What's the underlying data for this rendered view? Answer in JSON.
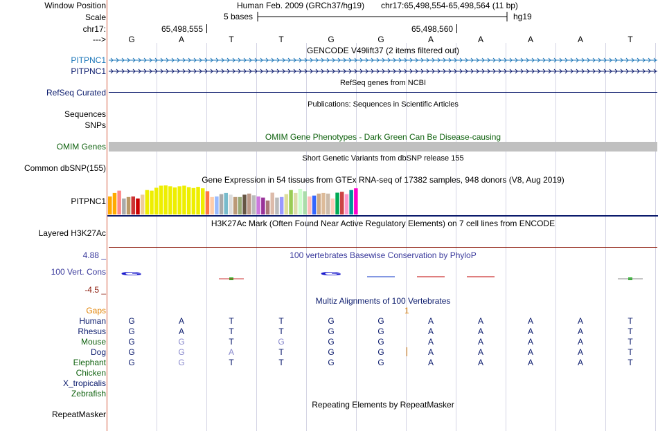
{
  "header": {
    "window_position_label": "Window Position",
    "scale_label": "Scale",
    "chrom_label": "chr17:",
    "arrow_label": "--->",
    "assembly_text": "Human Feb. 2009 (GRCh37/hg19)",
    "position_text": "chr17:65,498,554-65,498,564 (11 bp)",
    "scale_text": "5 bases",
    "assembly_short": "hg19",
    "coord_left": "65,498,555",
    "coord_right": "65,498,560"
  },
  "sequence": [
    "G",
    "A",
    "T",
    "T",
    "G",
    "G",
    "A",
    "A",
    "A",
    "A",
    "T"
  ],
  "tracks": {
    "gencode_title": "GENCODE V49lift37 (2 items filtered out)",
    "gencode_items": [
      "PITPNC1",
      "PITPNC1"
    ],
    "refseq_title": "RefSeq genes from NCBI",
    "refseq_label": "RefSeq Curated",
    "pubs_title": "Publications: Sequences in Scientific Articles",
    "sequences_label": "Sequences",
    "snps_label": "SNPs",
    "omim_title": "OMIM Gene Phenotypes - Dark Green Can Be Disease-causing",
    "omim_label": "OMIM Genes",
    "dbsnp_title": "Short Genetic Variants from dbSNP release 155",
    "dbsnp_label": "Common dbSNP(155)",
    "gtex_title": "Gene Expression in 54 tissues from GTEx RNA-seq of 17382 samples, 948 donors (V8, Aug 2019)",
    "gtex_label": "PITPNC1",
    "h3k27_title": "H3K27Ac Mark (Often Found Near Active Regulatory Elements) on 7 cell lines from ENCODE",
    "h3k27_label": "Layered H3K27Ac",
    "cons_title": "100 vertebrates Basewise Conservation by PhyloP",
    "cons_label": "100 Vert. Cons",
    "cons_max": "4.88 _",
    "cons_min": "-4.5 _",
    "multiz_title": "Multiz Alignments of 100 Vertebrates",
    "gaps_label": "Gaps",
    "gaps_value": "1",
    "rmsk_title": "Repeating Elements by RepeatMasker",
    "rmsk_label": "RepeatMasker"
  },
  "gtex_values": [
    0.62,
    0.74,
    0.82,
    0.55,
    0.6,
    0.62,
    0.55,
    0.68,
    0.84,
    0.82,
    0.92,
    0.99,
    1.0,
    0.97,
    0.93,
    0.97,
    0.99,
    0.94,
    0.91,
    0.95,
    0.9,
    0.8,
    0.6,
    0.62,
    0.7,
    0.74,
    0.68,
    0.6,
    0.6,
    0.68,
    0.72,
    0.66,
    0.62,
    0.58,
    0.48,
    0.75,
    0.58,
    0.6,
    0.7,
    0.84,
    0.74,
    0.88,
    0.8,
    0.62,
    0.65,
    0.72,
    0.74,
    0.72,
    0.55,
    0.75,
    0.78,
    0.7,
    0.84,
    0.9
  ],
  "gtex_colors": [
    "#ffaa00",
    "#ffaa00",
    "#ff8888",
    "#aaaaaa",
    "#bb9966",
    "#cc3333",
    "#cc0000",
    "#eecc99",
    "#eeee00",
    "#eeee00",
    "#eeee00",
    "#eeee00",
    "#eeee00",
    "#eeee00",
    "#eeee00",
    "#eeee00",
    "#eeee00",
    "#eeee00",
    "#eeee00",
    "#eeee00",
    "#eeee00",
    "#ff7744",
    "#ffccaa",
    "#99bbff",
    "#aaaaaa",
    "#77bbcc",
    "#dddddd",
    "#bb9977",
    "#99aa77",
    "#665544",
    "#bb9988",
    "#bbbbbb",
    "#cc77dd",
    "#993399",
    "#aa7777",
    "#ddbbaa",
    "#bbbbbb",
    "#9999ff",
    "#dddd99",
    "#99cc55",
    "#ddddaa",
    "#ccffcc",
    "#aaddaa",
    "#ffbbbb",
    "#3366ff",
    "#ccaa88",
    "#ddbb99",
    "#ccbbaa",
    "#ffccbb",
    "#00aa55",
    "#cc4444",
    "#ff99cc",
    "#009999",
    "#ff00cc"
  ],
  "conservation": {
    "letters": [
      "G",
      "",
      "",
      "",
      "G",
      "",
      "",
      "",
      "",
      "",
      ""
    ],
    "marks": [
      {
        "base": 2,
        "kind": "green"
      },
      {
        "base": 5,
        "kind": "blue-line"
      },
      {
        "base": 6,
        "kind": "red-line"
      },
      {
        "base": 7,
        "kind": "red-line"
      },
      {
        "base": 10,
        "kind": "green"
      }
    ]
  },
  "alignments": [
    {
      "species": "Human",
      "color": "#0a1a6c",
      "bases": [
        "G",
        "A",
        "T",
        "T",
        "G",
        "G",
        "A",
        "A",
        "A",
        "A",
        "T"
      ],
      "dim": []
    },
    {
      "species": "Rhesus",
      "color": "#0a1a6c",
      "bases": [
        "G",
        "A",
        "T",
        "T",
        "G",
        "G",
        "A",
        "A",
        "A",
        "A",
        "T"
      ],
      "dim": []
    },
    {
      "species": "Mouse",
      "color": "#10620f",
      "bases": [
        "G",
        "G",
        "T",
        "G",
        "G",
        "G",
        "A",
        "A",
        "A",
        "A",
        "T"
      ],
      "dim": [
        1,
        3
      ]
    },
    {
      "species": "Dog",
      "color": "#0a1a6c",
      "bases": [
        "G",
        "G",
        "A",
        "T",
        "G",
        "G",
        "A",
        "A",
        "A",
        "A",
        "T"
      ],
      "dim": [
        1,
        2
      ]
    },
    {
      "species": "Elephant",
      "color": "#10620f",
      "bases": [
        "G",
        "G",
        "T",
        "T",
        "G",
        "G",
        "A",
        "A",
        "A",
        "A",
        "T"
      ],
      "dim": [
        1
      ]
    },
    {
      "species": "Chicken",
      "color": "#10620f",
      "bases": [],
      "dim": []
    },
    {
      "species": "X_tropicalis",
      "color": "#0a1a6c",
      "bases": [],
      "dim": []
    },
    {
      "species": "Zebrafish",
      "color": "#10620f",
      "bases": [],
      "dim": []
    }
  ],
  "colors": {
    "gencode_1": "#1a75b8",
    "gencode_2": "#0a1a6c",
    "refseq": "#0a1a6c",
    "omim": "#10620f",
    "omim_bar": "#c0c0c0",
    "gtex_line": "#0a1a6c",
    "h3k27_line": "#8b1a0a",
    "cons": "#3a3a9c",
    "cons_min": "#8b1a0a",
    "gaps": "#e08000",
    "dim_base": "#8888cc",
    "divider": "#f3d0c8"
  }
}
